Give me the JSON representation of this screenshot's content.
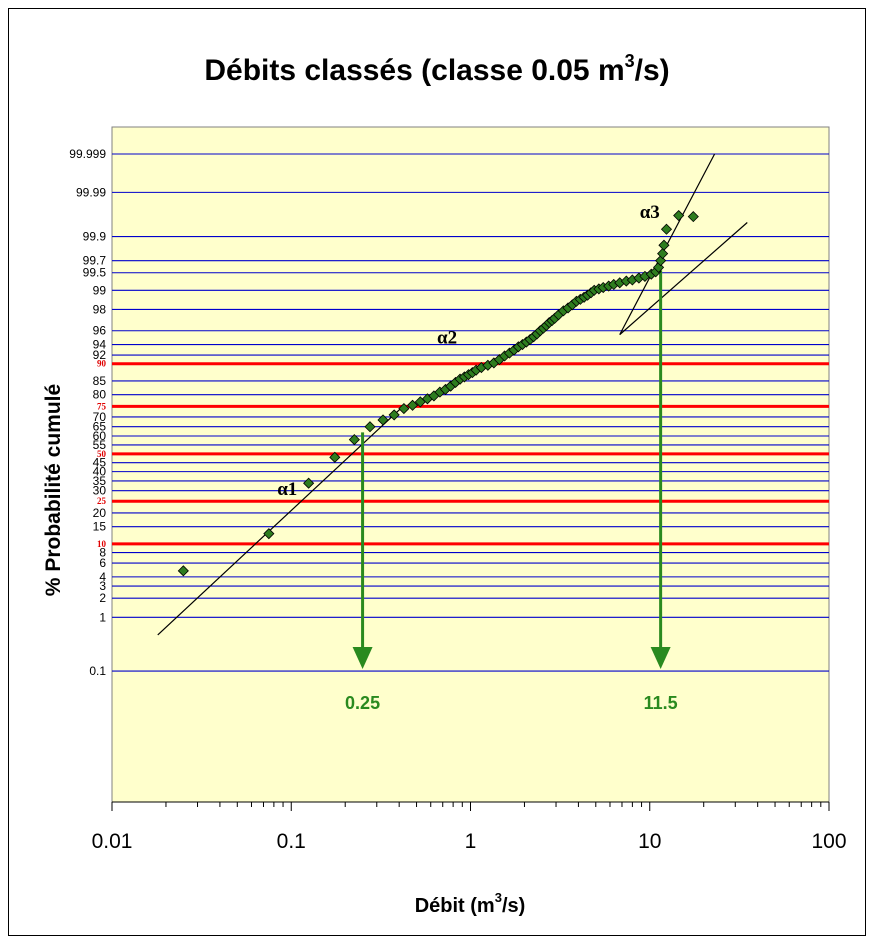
{
  "chart_data": {
    "type": "scatter",
    "title_main": "Débits classés (classe 0.05 m",
    "title_sup": "3",
    "title_tail": "/s)",
    "xlabel_main": "Débit (m",
    "xlabel_sup": "3",
    "xlabel_tail": "/s)",
    "ylabel": "% Probabilité cumulé",
    "x_scale": "log",
    "y_scale": "normal-probability",
    "xlim": [
      0.01,
      100
    ],
    "x_ticks": [
      "0.01",
      "0.1",
      "1",
      "10",
      "100"
    ],
    "y_ticks": [
      {
        "label": "99.999",
        "value": 99.999,
        "red": false
      },
      {
        "label": "99.99",
        "value": 99.99,
        "red": false
      },
      {
        "label": "99.9",
        "value": 99.9,
        "red": false
      },
      {
        "label": "99.7",
        "value": 99.7,
        "red": false
      },
      {
        "label": "99.5",
        "value": 99.5,
        "red": false
      },
      {
        "label": "99",
        "value": 99,
        "red": false
      },
      {
        "label": "98",
        "value": 98,
        "red": false
      },
      {
        "label": "96",
        "value": 96,
        "red": false
      },
      {
        "label": "94",
        "value": 94,
        "red": false
      },
      {
        "label": "92",
        "value": 92,
        "red": false
      },
      {
        "label": "90",
        "value": 90,
        "red": true
      },
      {
        "label": "85",
        "value": 85,
        "red": false
      },
      {
        "label": "80",
        "value": 80,
        "red": false
      },
      {
        "label": "75",
        "value": 75,
        "red": true
      },
      {
        "label": "70",
        "value": 70,
        "red": false
      },
      {
        "label": "65",
        "value": 65,
        "red": false
      },
      {
        "label": "60",
        "value": 60,
        "red": false
      },
      {
        "label": "55",
        "value": 55,
        "red": false
      },
      {
        "label": "50",
        "value": 50,
        "red": true
      },
      {
        "label": "45",
        "value": 45,
        "red": false
      },
      {
        "label": "40",
        "value": 40,
        "red": false
      },
      {
        "label": "35",
        "value": 35,
        "red": false
      },
      {
        "label": "30",
        "value": 30,
        "red": false
      },
      {
        "label": "25",
        "value": 25,
        "red": true
      },
      {
        "label": "20",
        "value": 20,
        "red": false
      },
      {
        "label": "15",
        "value": 15,
        "red": false
      },
      {
        "label": "10",
        "value": 10,
        "red": true
      },
      {
        "label": "8",
        "value": 8,
        "red": false
      },
      {
        "label": "6",
        "value": 6,
        "red": false
      },
      {
        "label": "4",
        "value": 4,
        "red": false
      },
      {
        "label": "3",
        "value": 3,
        "red": false
      },
      {
        "label": "2",
        "value": 2,
        "red": false
      },
      {
        "label": "1",
        "value": 1,
        "red": false
      },
      {
        "label": "0.1",
        "value": 0.1,
        "red": false
      }
    ],
    "points": [
      [
        0.025,
        4.8
      ],
      [
        0.075,
        12.8
      ],
      [
        0.125,
        33.8
      ],
      [
        0.175,
        48.0
      ],
      [
        0.225,
        58.0
      ],
      [
        0.275,
        65.0
      ],
      [
        0.325,
        68.5
      ],
      [
        0.375,
        71.0
      ],
      [
        0.425,
        74.0
      ],
      [
        0.475,
        75.5
      ],
      [
        0.525,
        77.0
      ],
      [
        0.575,
        78.3
      ],
      [
        0.625,
        79.5
      ],
      [
        0.675,
        81.0
      ],
      [
        0.725,
        82.0
      ],
      [
        0.775,
        83.2
      ],
      [
        0.825,
        84.5
      ],
      [
        0.875,
        85.6
      ],
      [
        0.925,
        86.3
      ],
      [
        0.975,
        87.0
      ],
      [
        1.025,
        87.6
      ],
      [
        1.075,
        88.3
      ],
      [
        1.15,
        89.0
      ],
      [
        1.25,
        89.6
      ],
      [
        1.35,
        90.2
      ],
      [
        1.45,
        91.0
      ],
      [
        1.55,
        91.8
      ],
      [
        1.65,
        92.4
      ],
      [
        1.75,
        93.0
      ],
      [
        1.85,
        93.6
      ],
      [
        1.95,
        94.0
      ],
      [
        2.05,
        94.4
      ],
      [
        2.15,
        94.8
      ],
      [
        2.25,
        95.2
      ],
      [
        2.35,
        95.6
      ],
      [
        2.45,
        96.0
      ],
      [
        2.55,
        96.3
      ],
      [
        2.65,
        96.6
      ],
      [
        2.75,
        96.9
      ],
      [
        2.85,
        97.1
      ],
      [
        2.95,
        97.3
      ],
      [
        3.1,
        97.6
      ],
      [
        3.3,
        97.9
      ],
      [
        3.5,
        98.1
      ],
      [
        3.7,
        98.3
      ],
      [
        3.9,
        98.5
      ],
      [
        4.1,
        98.6
      ],
      [
        4.3,
        98.7
      ],
      [
        4.5,
        98.8
      ],
      [
        4.7,
        98.9
      ],
      [
        4.9,
        99.0
      ],
      [
        5.2,
        99.05
      ],
      [
        5.5,
        99.1
      ],
      [
        5.9,
        99.15
      ],
      [
        6.3,
        99.2
      ],
      [
        6.8,
        99.25
      ],
      [
        7.4,
        99.3
      ],
      [
        8.0,
        99.33
      ],
      [
        8.7,
        99.38
      ],
      [
        9.4,
        99.42
      ],
      [
        10.2,
        99.47
      ],
      [
        10.8,
        99.52
      ],
      [
        11.2,
        99.6
      ],
      [
        11.5,
        99.7
      ],
      [
        11.8,
        99.78
      ],
      [
        12.0,
        99.85
      ],
      [
        12.4,
        99.93
      ],
      [
        14.5,
        99.965
      ],
      [
        17.5,
        99.963
      ]
    ],
    "trend_lines": [
      {
        "name": "α1",
        "from": [
          0.018,
          0.5
        ],
        "to": [
          0.42,
          75.0
        ]
      },
      {
        "name": "α2",
        "from": [
          6.8,
          95.5
        ],
        "to": [
          35.0,
          99.95
        ]
      },
      {
        "name": "α3",
        "from": [
          6.8,
          95.5
        ],
        "to": [
          23.0,
          99.999
        ]
      }
    ],
    "annotations": [
      {
        "text": "α1",
        "x": 0.095,
        "y": 28.0
      },
      {
        "text": "α2",
        "x": 0.74,
        "y": 94.2
      },
      {
        "text": "α3",
        "x": 10.0,
        "y": 99.96
      }
    ],
    "arrows": [
      {
        "label": "0.25",
        "x": 0.25,
        "y_from": 62.0
      },
      {
        "label": "11.5",
        "x": 11.5,
        "y_from": 99.55
      }
    ],
    "colors": {
      "plot_bg": "#ffffcc",
      "grid": "#0000cc",
      "red_grid": "#ff0000",
      "marker": "#2e7d1e",
      "arrow": "#2a8a1f",
      "trend": "#000000"
    }
  }
}
